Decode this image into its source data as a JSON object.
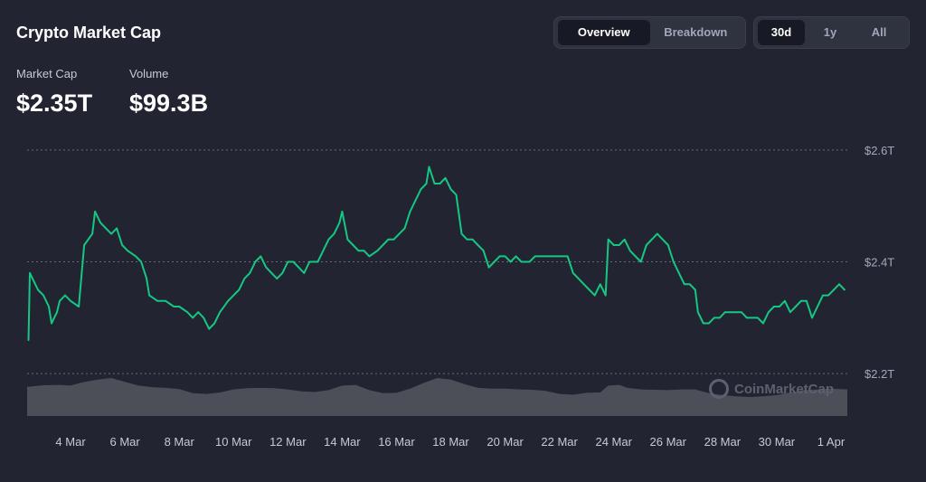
{
  "header": {
    "title": "Crypto Market Cap",
    "view_tabs": [
      {
        "label": "Overview",
        "active": true
      },
      {
        "label": "Breakdown",
        "active": false
      }
    ],
    "range_tabs": [
      {
        "label": "30d",
        "active": true
      },
      {
        "label": "1y",
        "active": false
      },
      {
        "label": "All",
        "active": false
      }
    ]
  },
  "stats": {
    "market_cap_label": "Market Cap",
    "market_cap_value": "$2.35T",
    "volume_label": "Volume",
    "volume_value": "$99.3B"
  },
  "watermark": "CoinMarketCap",
  "colors": {
    "background": "#222531",
    "line": "#16c784",
    "volume": "#53565f",
    "grid": "#676b78"
  },
  "chart_data": {
    "type": "line",
    "title": "",
    "xlabel": "",
    "ylabel": "",
    "ylim": [
      2.1,
      2.65
    ],
    "xlim": [
      2.4,
      32.7
    ],
    "y_ticks": [
      {
        "value": 2.2,
        "label": "$2.2T"
      },
      {
        "value": 2.4,
        "label": "$2.4T"
      },
      {
        "value": 2.6,
        "label": "$2.6T"
      }
    ],
    "x_ticks": [
      {
        "value": 4,
        "label": "4 Mar"
      },
      {
        "value": 6,
        "label": "6 Mar"
      },
      {
        "value": 8,
        "label": "8 Mar"
      },
      {
        "value": 10,
        "label": "10 Mar"
      },
      {
        "value": 12,
        "label": "12 Mar"
      },
      {
        "value": 14,
        "label": "14 Mar"
      },
      {
        "value": 16,
        "label": "16 Mar"
      },
      {
        "value": 18,
        "label": "18 Mar"
      },
      {
        "value": 20,
        "label": "20 Mar"
      },
      {
        "value": 22,
        "label": "22 Mar"
      },
      {
        "value": 24,
        "label": "24 Mar"
      },
      {
        "value": 26,
        "label": "26 Mar"
      },
      {
        "value": 28,
        "label": "28 Mar"
      },
      {
        "value": 30,
        "label": "30 Mar"
      },
      {
        "value": 32,
        "label": "1 Apr"
      }
    ],
    "grid": true,
    "series": [
      {
        "values": [
          [
            2.45,
            2.26
          ],
          [
            2.5,
            2.38
          ],
          [
            2.6,
            2.37
          ],
          [
            2.8,
            2.35
          ],
          [
            3.0,
            2.34
          ],
          [
            3.2,
            2.32
          ],
          [
            3.3,
            2.29
          ],
          [
            3.5,
            2.31
          ],
          [
            3.6,
            2.33
          ],
          [
            3.8,
            2.34
          ],
          [
            4.0,
            2.33
          ],
          [
            4.3,
            2.32
          ],
          [
            4.5,
            2.43
          ],
          [
            4.8,
            2.45
          ],
          [
            4.9,
            2.49
          ],
          [
            5.1,
            2.47
          ],
          [
            5.3,
            2.46
          ],
          [
            5.5,
            2.45
          ],
          [
            5.7,
            2.46
          ],
          [
            5.9,
            2.43
          ],
          [
            6.1,
            2.42
          ],
          [
            6.4,
            2.41
          ],
          [
            6.6,
            2.4
          ],
          [
            6.8,
            2.37
          ],
          [
            6.9,
            2.34
          ],
          [
            7.2,
            2.33
          ],
          [
            7.5,
            2.33
          ],
          [
            7.8,
            2.32
          ],
          [
            8.0,
            2.32
          ],
          [
            8.3,
            2.31
          ],
          [
            8.5,
            2.3
          ],
          [
            8.7,
            2.31
          ],
          [
            8.9,
            2.3
          ],
          [
            9.1,
            2.28
          ],
          [
            9.3,
            2.29
          ],
          [
            9.5,
            2.31
          ],
          [
            9.8,
            2.33
          ],
          [
            10.0,
            2.34
          ],
          [
            10.2,
            2.35
          ],
          [
            10.4,
            2.37
          ],
          [
            10.6,
            2.38
          ],
          [
            10.8,
            2.4
          ],
          [
            11.0,
            2.41
          ],
          [
            11.2,
            2.39
          ],
          [
            11.4,
            2.38
          ],
          [
            11.6,
            2.37
          ],
          [
            11.8,
            2.38
          ],
          [
            12.0,
            2.4
          ],
          [
            12.2,
            2.4
          ],
          [
            12.4,
            2.39
          ],
          [
            12.6,
            2.38
          ],
          [
            12.8,
            2.4
          ],
          [
            13.1,
            2.4
          ],
          [
            13.3,
            2.42
          ],
          [
            13.5,
            2.44
          ],
          [
            13.7,
            2.45
          ],
          [
            13.9,
            2.47
          ],
          [
            14.0,
            2.49
          ],
          [
            14.2,
            2.44
          ],
          [
            14.4,
            2.43
          ],
          [
            14.6,
            2.42
          ],
          [
            14.8,
            2.42
          ],
          [
            15.0,
            2.41
          ],
          [
            15.3,
            2.42
          ],
          [
            15.5,
            2.43
          ],
          [
            15.7,
            2.44
          ],
          [
            15.9,
            2.44
          ],
          [
            16.1,
            2.45
          ],
          [
            16.3,
            2.46
          ],
          [
            16.5,
            2.49
          ],
          [
            16.7,
            2.51
          ],
          [
            16.9,
            2.53
          ],
          [
            17.1,
            2.54
          ],
          [
            17.2,
            2.57
          ],
          [
            17.4,
            2.54
          ],
          [
            17.6,
            2.54
          ],
          [
            17.8,
            2.55
          ],
          [
            18.0,
            2.53
          ],
          [
            18.2,
            2.52
          ],
          [
            18.4,
            2.45
          ],
          [
            18.6,
            2.44
          ],
          [
            18.8,
            2.44
          ],
          [
            19.0,
            2.43
          ],
          [
            19.2,
            2.42
          ],
          [
            19.4,
            2.39
          ],
          [
            19.6,
            2.4
          ],
          [
            19.8,
            2.41
          ],
          [
            20.0,
            2.41
          ],
          [
            20.2,
            2.4
          ],
          [
            20.4,
            2.41
          ],
          [
            20.6,
            2.4
          ],
          [
            20.9,
            2.4
          ],
          [
            21.1,
            2.41
          ],
          [
            21.3,
            2.41
          ],
          [
            21.6,
            2.41
          ],
          [
            21.8,
            2.41
          ],
          [
            22.0,
            2.41
          ],
          [
            22.3,
            2.41
          ],
          [
            22.5,
            2.38
          ],
          [
            22.7,
            2.37
          ],
          [
            22.9,
            2.36
          ],
          [
            23.1,
            2.35
          ],
          [
            23.3,
            2.34
          ],
          [
            23.5,
            2.36
          ],
          [
            23.7,
            2.34
          ],
          [
            23.8,
            2.44
          ],
          [
            24.0,
            2.43
          ],
          [
            24.2,
            2.43
          ],
          [
            24.4,
            2.44
          ],
          [
            24.6,
            2.42
          ],
          [
            24.8,
            2.41
          ],
          [
            25.0,
            2.4
          ],
          [
            25.2,
            2.43
          ],
          [
            25.4,
            2.44
          ],
          [
            25.6,
            2.45
          ],
          [
            25.8,
            2.44
          ],
          [
            26.0,
            2.43
          ],
          [
            26.2,
            2.4
          ],
          [
            26.4,
            2.38
          ],
          [
            26.6,
            2.36
          ],
          [
            26.8,
            2.36
          ],
          [
            27.0,
            2.35
          ],
          [
            27.1,
            2.31
          ],
          [
            27.3,
            2.29
          ],
          [
            27.5,
            2.29
          ],
          [
            27.7,
            2.3
          ],
          [
            27.9,
            2.3
          ],
          [
            28.1,
            2.31
          ],
          [
            28.3,
            2.31
          ],
          [
            28.5,
            2.31
          ],
          [
            28.7,
            2.31
          ],
          [
            28.9,
            2.3
          ],
          [
            29.1,
            2.3
          ],
          [
            29.3,
            2.3
          ],
          [
            29.5,
            2.29
          ],
          [
            29.7,
            2.31
          ],
          [
            29.9,
            2.32
          ],
          [
            30.1,
            2.32
          ],
          [
            30.3,
            2.33
          ],
          [
            30.5,
            2.31
          ],
          [
            30.7,
            2.32
          ],
          [
            30.9,
            2.33
          ],
          [
            31.1,
            2.33
          ],
          [
            31.3,
            2.3
          ],
          [
            31.5,
            2.32
          ],
          [
            31.7,
            2.34
          ],
          [
            31.9,
            2.34
          ],
          [
            32.1,
            2.35
          ],
          [
            32.3,
            2.36
          ],
          [
            32.5,
            2.35
          ]
        ]
      }
    ],
    "volume": [
      [
        2.4,
        0.77
      ],
      [
        3.0,
        0.81
      ],
      [
        3.6,
        0.82
      ],
      [
        4.0,
        0.8
      ],
      [
        4.4,
        0.88
      ],
      [
        5.0,
        0.96
      ],
      [
        5.5,
        1.0
      ],
      [
        6.0,
        0.9
      ],
      [
        6.5,
        0.8
      ],
      [
        7.0,
        0.76
      ],
      [
        7.5,
        0.74
      ],
      [
        8.0,
        0.71
      ],
      [
        8.5,
        0.6
      ],
      [
        9.0,
        0.58
      ],
      [
        9.5,
        0.62
      ],
      [
        10.0,
        0.7
      ],
      [
        10.5,
        0.73
      ],
      [
        11.0,
        0.74
      ],
      [
        11.5,
        0.73
      ],
      [
        12.0,
        0.7
      ],
      [
        12.5,
        0.65
      ],
      [
        13.0,
        0.63
      ],
      [
        13.5,
        0.68
      ],
      [
        14.0,
        0.8
      ],
      [
        14.5,
        0.82
      ],
      [
        15.0,
        0.68
      ],
      [
        15.5,
        0.6
      ],
      [
        16.0,
        0.61
      ],
      [
        16.5,
        0.72
      ],
      [
        17.0,
        0.87
      ],
      [
        17.5,
        1.0
      ],
      [
        18.0,
        0.96
      ],
      [
        18.5,
        0.84
      ],
      [
        19.0,
        0.74
      ],
      [
        19.5,
        0.72
      ],
      [
        20.0,
        0.72
      ],
      [
        20.5,
        0.7
      ],
      [
        21.0,
        0.69
      ],
      [
        21.5,
        0.66
      ],
      [
        22.0,
        0.58
      ],
      [
        22.5,
        0.56
      ],
      [
        23.0,
        0.61
      ],
      [
        23.5,
        0.62
      ],
      [
        23.8,
        0.8
      ],
      [
        24.2,
        0.82
      ],
      [
        24.5,
        0.74
      ],
      [
        25.0,
        0.7
      ],
      [
        25.5,
        0.69
      ],
      [
        26.0,
        0.68
      ],
      [
        26.5,
        0.7
      ],
      [
        27.0,
        0.7
      ],
      [
        27.5,
        0.6
      ],
      [
        28.0,
        0.55
      ],
      [
        28.5,
        0.52
      ],
      [
        29.0,
        0.5
      ],
      [
        29.5,
        0.52
      ],
      [
        30.0,
        0.55
      ],
      [
        30.5,
        0.62
      ],
      [
        31.0,
        0.68
      ],
      [
        31.5,
        0.7
      ],
      [
        32.0,
        0.72
      ],
      [
        32.6,
        0.7
      ]
    ]
  }
}
